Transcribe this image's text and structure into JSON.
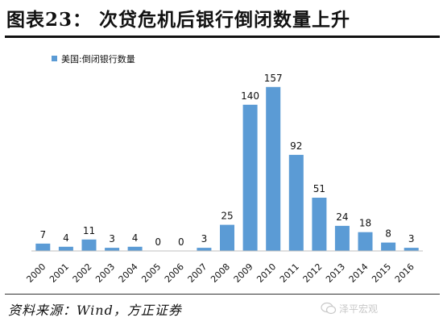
{
  "title": "图表23： 次贷危机后银行倒闭数量上升",
  "source": "资料来源：Wind，方正证券",
  "watermark": "泽平宏观",
  "colors": {
    "bar": "#5b9bd5",
    "axis": "#bfbfbf",
    "text": "#111111"
  },
  "chart_data": {
    "type": "bar",
    "categories": [
      "2000",
      "2001",
      "2002",
      "2003",
      "2004",
      "2005",
      "2006",
      "2007",
      "2008",
      "2009",
      "2010",
      "2011",
      "2012",
      "2013",
      "2014",
      "2015",
      "2016"
    ],
    "series": [
      {
        "name": "美国:倒闭银行数量",
        "values": [
          7,
          4,
          11,
          3,
          4,
          0,
          0,
          3,
          25,
          140,
          157,
          92,
          51,
          24,
          18,
          8,
          3
        ]
      }
    ],
    "data_labels": true,
    "legend_position": "top-left",
    "ylim": [
      0,
      170
    ],
    "grid": false,
    "xlabel": "",
    "ylabel": ""
  }
}
